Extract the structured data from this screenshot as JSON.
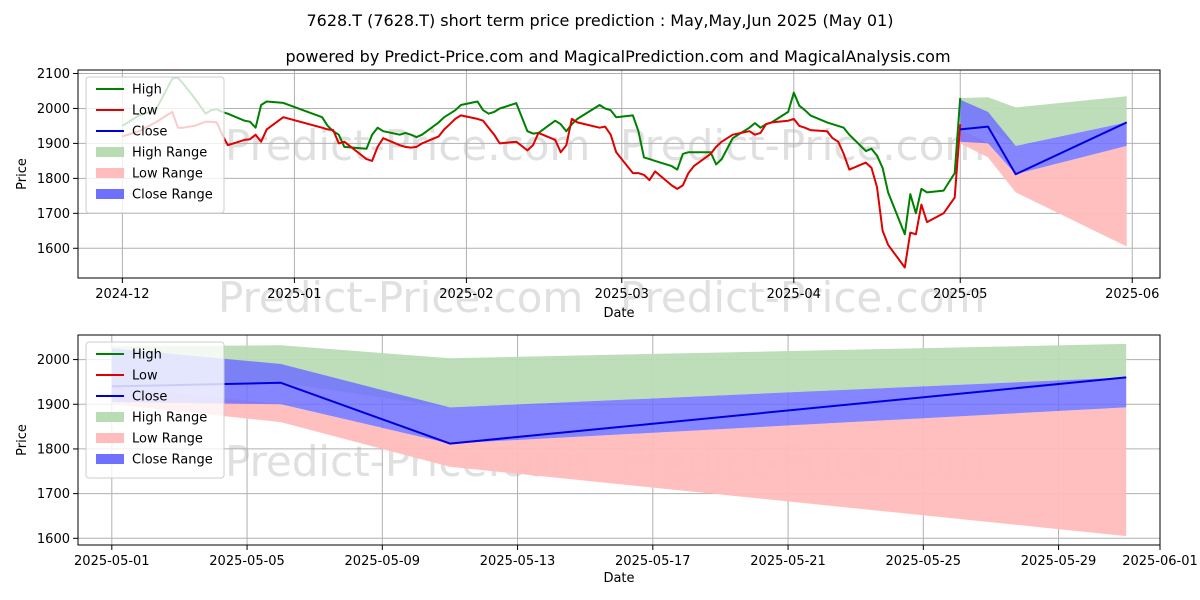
{
  "title": "7628.T (7628.T) short term price prediction : May,May,Jun 2025 (May 01)",
  "subtitle": "powered by Predict-Price.com and MagicalPrediction.com and MagicalAnalysis.com",
  "watermark": "Predict-Price.com",
  "colors": {
    "high": "#008000",
    "low": "#e00000",
    "close": "#0000dd",
    "high_range": "#b9dcb5",
    "low_range": "#ffbcbc",
    "close_range": "#7070ff"
  },
  "chart_data": [
    {
      "type": "line",
      "panel": "top",
      "xlabel": "Date",
      "ylabel": "Price",
      "xlim": [
        "2024-11-23",
        "2025-06-06"
      ],
      "ylim": [
        1515,
        2110
      ],
      "x_ticks": [
        "2024-12",
        "2025-01",
        "2025-02",
        "2025-03",
        "2025-04",
        "2025-05",
        "2025-06"
      ],
      "x_tick_dates": [
        "2024-12-01",
        "2025-01-01",
        "2025-02-01",
        "2025-03-01",
        "2025-04-01",
        "2025-05-01",
        "2025-06-01"
      ],
      "y_ticks": [
        1600,
        1700,
        1800,
        1900,
        2000,
        2100
      ],
      "grid": true,
      "legend_position": "top-left",
      "legend": [
        "High",
        "Low",
        "Close",
        "High Range",
        "Low Range",
        "Close Range"
      ],
      "series": [
        {
          "name": "High",
          "x": [
            "2024-12-01",
            "2024-12-04",
            "2024-12-07",
            "2024-12-10",
            "2024-12-11",
            "2024-12-12",
            "2024-12-13",
            "2024-12-14",
            "2024-12-16",
            "2024-12-17",
            "2024-12-18",
            "2024-12-19",
            "2024-12-20",
            "2024-12-23",
            "2024-12-24",
            "2024-12-25",
            "2024-12-26",
            "2024-12-27",
            "2024-12-30",
            "2025-01-06",
            "2025-01-07",
            "2025-01-08",
            "2025-01-09",
            "2025-01-10",
            "2025-01-14",
            "2025-01-15",
            "2025-01-16",
            "2025-01-17",
            "2025-01-20",
            "2025-01-21",
            "2025-01-22",
            "2025-01-23",
            "2025-01-24",
            "2025-01-27",
            "2025-01-28",
            "2025-01-29",
            "2025-01-30",
            "2025-01-31",
            "2025-02-03",
            "2025-02-04",
            "2025-02-05",
            "2025-02-06",
            "2025-02-07",
            "2025-02-10",
            "2025-02-12",
            "2025-02-13",
            "2025-02-14",
            "2025-02-17",
            "2025-02-18",
            "2025-02-19",
            "2025-02-20",
            "2025-02-21",
            "2025-02-25",
            "2025-02-26",
            "2025-02-27",
            "2025-02-28",
            "2025-03-03",
            "2025-03-04",
            "2025-03-05",
            "2025-03-06",
            "2025-03-07",
            "2025-03-10",
            "2025-03-11",
            "2025-03-12",
            "2025-03-13",
            "2025-03-14",
            "2025-03-17",
            "2025-03-18",
            "2025-03-19",
            "2025-03-21",
            "2025-03-24",
            "2025-03-25",
            "2025-03-26",
            "2025-03-27",
            "2025-03-28",
            "2025-03-31",
            "2025-04-01",
            "2025-04-02",
            "2025-04-03",
            "2025-04-04",
            "2025-04-07",
            "2025-04-08",
            "2025-04-09",
            "2025-04-10",
            "2025-04-11",
            "2025-04-14",
            "2025-04-15",
            "2025-04-16",
            "2025-04-17",
            "2025-04-18",
            "2025-04-21",
            "2025-04-22",
            "2025-04-23",
            "2025-04-24",
            "2025-04-25",
            "2025-04-28",
            "2025-04-30",
            "2025-05-01"
          ],
          "y": [
            1950,
            1980,
            1995,
            2085,
            2088,
            2070,
            2050,
            2030,
            1985,
            1995,
            1998,
            1990,
            1985,
            1965,
            1962,
            1945,
            2010,
            2020,
            2016,
            1975,
            1950,
            1935,
            1925,
            1890,
            1885,
            1925,
            1945,
            1935,
            1925,
            1930,
            1925,
            1918,
            1925,
            1960,
            1975,
            1985,
            1995,
            2010,
            2020,
            1995,
            1985,
            1990,
            2000,
            2015,
            1935,
            1928,
            1930,
            1965,
            1955,
            1935,
            1955,
            1970,
            2010,
            2000,
            1995,
            1975,
            1980,
            1935,
            1860,
            1855,
            1850,
            1835,
            1825,
            1870,
            1875,
            1875,
            1875,
            1840,
            1855,
            1915,
            1945,
            1958,
            1945,
            1955,
            1960,
            1990,
            2045,
            2008,
            1995,
            1980,
            1960,
            1955,
            1950,
            1945,
            1925,
            1878,
            1885,
            1865,
            1830,
            1760,
            1640,
            1755,
            1700,
            1770,
            1760,
            1765,
            1815,
            2030
          ]
        },
        {
          "name": "Low",
          "x": [
            "2024-12-01",
            "2024-12-04",
            "2024-12-07",
            "2024-12-10",
            "2024-12-11",
            "2024-12-12",
            "2024-12-13",
            "2024-12-14",
            "2024-12-16",
            "2024-12-17",
            "2024-12-18",
            "2024-12-19",
            "2024-12-20",
            "2024-12-23",
            "2024-12-24",
            "2024-12-25",
            "2024-12-26",
            "2024-12-27",
            "2024-12-30",
            "2025-01-06",
            "2025-01-07",
            "2025-01-08",
            "2025-01-09",
            "2025-01-10",
            "2025-01-14",
            "2025-01-15",
            "2025-01-16",
            "2025-01-17",
            "2025-01-20",
            "2025-01-21",
            "2025-01-22",
            "2025-01-23",
            "2025-01-24",
            "2025-01-27",
            "2025-01-28",
            "2025-01-29",
            "2025-01-30",
            "2025-01-31",
            "2025-02-03",
            "2025-02-04",
            "2025-02-05",
            "2025-02-06",
            "2025-02-07",
            "2025-02-10",
            "2025-02-12",
            "2025-02-13",
            "2025-02-14",
            "2025-02-17",
            "2025-02-18",
            "2025-02-19",
            "2025-02-20",
            "2025-02-21",
            "2025-02-25",
            "2025-02-26",
            "2025-02-27",
            "2025-02-28",
            "2025-03-03",
            "2025-03-04",
            "2025-03-05",
            "2025-03-06",
            "2025-03-07",
            "2025-03-10",
            "2025-03-11",
            "2025-03-12",
            "2025-03-13",
            "2025-03-14",
            "2025-03-17",
            "2025-03-18",
            "2025-03-19",
            "2025-03-21",
            "2025-03-24",
            "2025-03-25",
            "2025-03-26",
            "2025-03-27",
            "2025-03-28",
            "2025-03-31",
            "2025-04-01",
            "2025-04-02",
            "2025-04-03",
            "2025-04-04",
            "2025-04-07",
            "2025-04-08",
            "2025-04-09",
            "2025-04-10",
            "2025-04-11",
            "2025-04-14",
            "2025-04-15",
            "2025-04-16",
            "2025-04-17",
            "2025-04-18",
            "2025-04-21",
            "2025-04-22",
            "2025-04-23",
            "2025-04-24",
            "2025-04-25",
            "2025-04-28",
            "2025-04-30",
            "2025-05-01"
          ],
          "y": [
            1920,
            1935,
            1960,
            1990,
            1945,
            1945,
            1948,
            1950,
            1962,
            1962,
            1960,
            1925,
            1895,
            1910,
            1912,
            1925,
            1905,
            1940,
            1975,
            1945,
            1940,
            1938,
            1900,
            1905,
            1855,
            1850,
            1890,
            1915,
            1895,
            1890,
            1888,
            1890,
            1900,
            1920,
            1940,
            1955,
            1970,
            1980,
            1970,
            1965,
            1945,
            1925,
            1900,
            1905,
            1880,
            1895,
            1930,
            1910,
            1875,
            1895,
            1970,
            1960,
            1945,
            1948,
            1925,
            1875,
            1815,
            1815,
            1810,
            1795,
            1820,
            1780,
            1770,
            1780,
            1815,
            1835,
            1870,
            1890,
            1905,
            1925,
            1935,
            1925,
            1930,
            1955,
            1960,
            1965,
            1970,
            1950,
            1945,
            1938,
            1935,
            1915,
            1905,
            1870,
            1825,
            1845,
            1830,
            1775,
            1650,
            1610,
            1545,
            1645,
            1640,
            1725,
            1675,
            1700,
            1745,
            1955
          ]
        },
        {
          "name": "Close",
          "x": [
            "2025-05-01",
            "2025-05-06",
            "2025-05-11",
            "2025-05-31"
          ],
          "y": [
            1940,
            1948,
            1812,
            1960
          ]
        }
      ],
      "ranges": [
        {
          "name": "High Range",
          "x": [
            "2025-05-01",
            "2025-05-06",
            "2025-05-11",
            "2025-05-31"
          ],
          "upper": [
            2030,
            2032,
            2003,
            2035
          ],
          "lower": [
            1940,
            1948,
            1893,
            1960
          ]
        },
        {
          "name": "Low Range",
          "x": [
            "2025-05-01",
            "2025-05-06",
            "2025-05-11",
            "2025-05-31"
          ],
          "upper": [
            1940,
            1900,
            1812,
            1893
          ],
          "lower": [
            1900,
            1860,
            1760,
            1605
          ]
        },
        {
          "name": "Close Range",
          "x": [
            "2025-05-01",
            "2025-05-06",
            "2025-05-11",
            "2025-05-31"
          ],
          "upper": [
            2025,
            1990,
            1893,
            1960
          ],
          "lower": [
            1905,
            1900,
            1812,
            1893
          ]
        }
      ]
    },
    {
      "type": "line",
      "panel": "bottom",
      "xlabel": "Date",
      "ylabel": "Price",
      "xlim": [
        "2025-04-30",
        "2025-06-01"
      ],
      "ylim": [
        1585,
        2055
      ],
      "x_ticks": [
        "2025-05-01",
        "2025-05-05",
        "2025-05-09",
        "2025-05-13",
        "2025-05-17",
        "2025-05-21",
        "2025-05-25",
        "2025-05-29",
        "2025-06-01"
      ],
      "x_tick_dates": [
        "2025-05-01",
        "2025-05-05",
        "2025-05-09",
        "2025-05-13",
        "2025-05-17",
        "2025-05-21",
        "2025-05-25",
        "2025-05-29",
        "2025-06-01"
      ],
      "y_ticks": [
        1600,
        1700,
        1800,
        1900,
        2000
      ],
      "grid": true,
      "legend_position": "top-left",
      "legend": [
        "High",
        "Low",
        "Close",
        "High Range",
        "Low Range",
        "Close Range"
      ],
      "series": [
        {
          "name": "Close",
          "x": [
            "2025-05-01",
            "2025-05-06",
            "2025-05-11",
            "2025-05-31"
          ],
          "y": [
            1940,
            1948,
            1812,
            1960
          ]
        }
      ],
      "ranges": [
        {
          "name": "High Range",
          "x": [
            "2025-05-01",
            "2025-05-06",
            "2025-05-11",
            "2025-05-31"
          ],
          "upper": [
            2030,
            2032,
            2003,
            2035
          ],
          "lower": [
            1940,
            1948,
            1893,
            1960
          ]
        },
        {
          "name": "Low Range",
          "x": [
            "2025-05-01",
            "2025-05-06",
            "2025-05-11",
            "2025-05-31"
          ],
          "upper": [
            1940,
            1900,
            1812,
            1893
          ],
          "lower": [
            1900,
            1860,
            1760,
            1605
          ]
        },
        {
          "name": "Close Range",
          "x": [
            "2025-05-01",
            "2025-05-06",
            "2025-05-11",
            "2025-05-31"
          ],
          "upper": [
            2025,
            1990,
            1893,
            1960
          ],
          "lower": [
            1905,
            1900,
            1812,
            1893
          ]
        }
      ]
    }
  ]
}
